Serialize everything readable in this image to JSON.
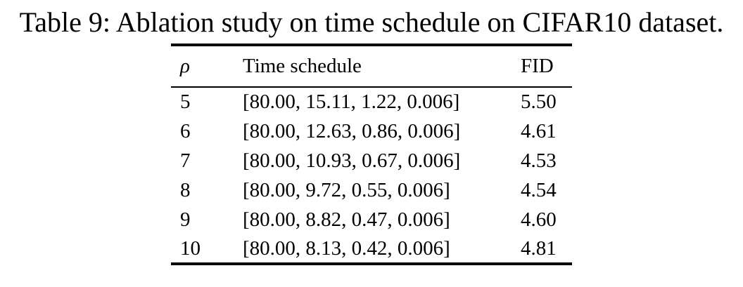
{
  "caption": "Table 9: Ablation study on time schedule on CIFAR10 dataset.",
  "colors": {
    "background": "#ffffff",
    "text": "#000000",
    "rule": "#000000"
  },
  "table": {
    "header": {
      "rho": "ρ",
      "schedule": "Time schedule",
      "fid": "FID"
    },
    "rows": [
      {
        "rho": "5",
        "schedule": "[80.00, 15.11, 1.22, 0.006]",
        "fid": "5.50"
      },
      {
        "rho": "6",
        "schedule": "[80.00, 12.63, 0.86, 0.006]",
        "fid": "4.61"
      },
      {
        "rho": "7",
        "schedule": "[80.00, 10.93, 0.67, 0.006]",
        "fid": "4.53"
      },
      {
        "rho": "8",
        "schedule": "[80.00, 9.72, 0.55, 0.006]",
        "fid": "4.54"
      },
      {
        "rho": "9",
        "schedule": "[80.00, 8.82, 0.47, 0.006]",
        "fid": "4.60"
      },
      {
        "rho": "10",
        "schedule": "[80.00, 8.13, 0.42, 0.006]",
        "fid": "4.81"
      }
    ]
  },
  "chart_data": {
    "type": "table",
    "title": "Table 9: Ablation study on time schedule on CIFAR10 dataset.",
    "columns": [
      "ρ",
      "Time schedule",
      "FID"
    ],
    "rho_values": [
      5,
      6,
      7,
      8,
      9,
      10
    ],
    "time_schedules": [
      [
        80.0,
        15.11,
        1.22,
        0.006
      ],
      [
        80.0,
        12.63,
        0.86,
        0.006
      ],
      [
        80.0,
        10.93,
        0.67,
        0.006
      ],
      [
        80.0,
        9.72,
        0.55,
        0.006
      ],
      [
        80.0,
        8.82,
        0.47,
        0.006
      ],
      [
        80.0,
        8.13,
        0.42,
        0.006
      ]
    ],
    "fid_values": [
      5.5,
      4.61,
      4.53,
      4.54,
      4.6,
      4.81
    ]
  }
}
